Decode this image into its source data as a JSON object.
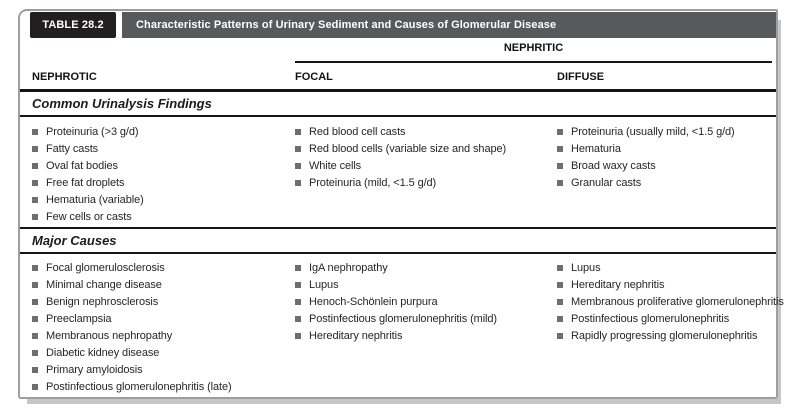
{
  "table": {
    "label": "TABLE 28.2",
    "title": "Characteristic Patterns of Urinary Sediment and Causes of Glomerular Disease",
    "group_header": "NEPHRITIC",
    "columns": [
      "NEPHROTIC",
      "FOCAL",
      "DIFFUSE"
    ],
    "sections": [
      {
        "heading": "Common Urinalysis Findings",
        "columns": [
          [
            "Proteinuria (>3 g/d)",
            "Fatty casts",
            "Oval fat bodies",
            "Free fat droplets",
            "Hematuria (variable)",
            "Few cells or casts"
          ],
          [
            "Red blood cell casts",
            "Red blood cells (variable size and shape)",
            "White cells",
            "Proteinuria (mild, <1.5 g/d)"
          ],
          [
            "Proteinuria (usually mild, <1.5 g/d)",
            "Hematuria",
            "Broad waxy casts",
            "Granular casts"
          ]
        ]
      },
      {
        "heading": "Major Causes",
        "columns": [
          [
            "Focal glomerulosclerosis",
            "Minimal change disease",
            "Benign nephrosclerosis",
            "Preeclampsia",
            "Membranous nephropathy",
            "Diabetic kidney disease",
            "Primary amyloidosis",
            "Postinfectious glomerulonephritis (late)"
          ],
          [
            "IgA nephropathy",
            "Lupus",
            "Henoch-Schönlein purpura",
            "Postinfectious glomerulonephritis (mild)",
            "Hereditary nephritis"
          ],
          [
            "Lupus",
            "Hereditary nephritis",
            "Membranous proliferative glomerulonephritis",
            "Postinfectious glomerulonephritis",
            "Rapidly progressing glomerulonephritis"
          ]
        ]
      }
    ],
    "colors": {
      "label-bg": "#231f20",
      "title-bg": "#58595b",
      "bullet": "#6d6e71",
      "text": "#262626",
      "frame-border": "#9e9e9e"
    }
  }
}
